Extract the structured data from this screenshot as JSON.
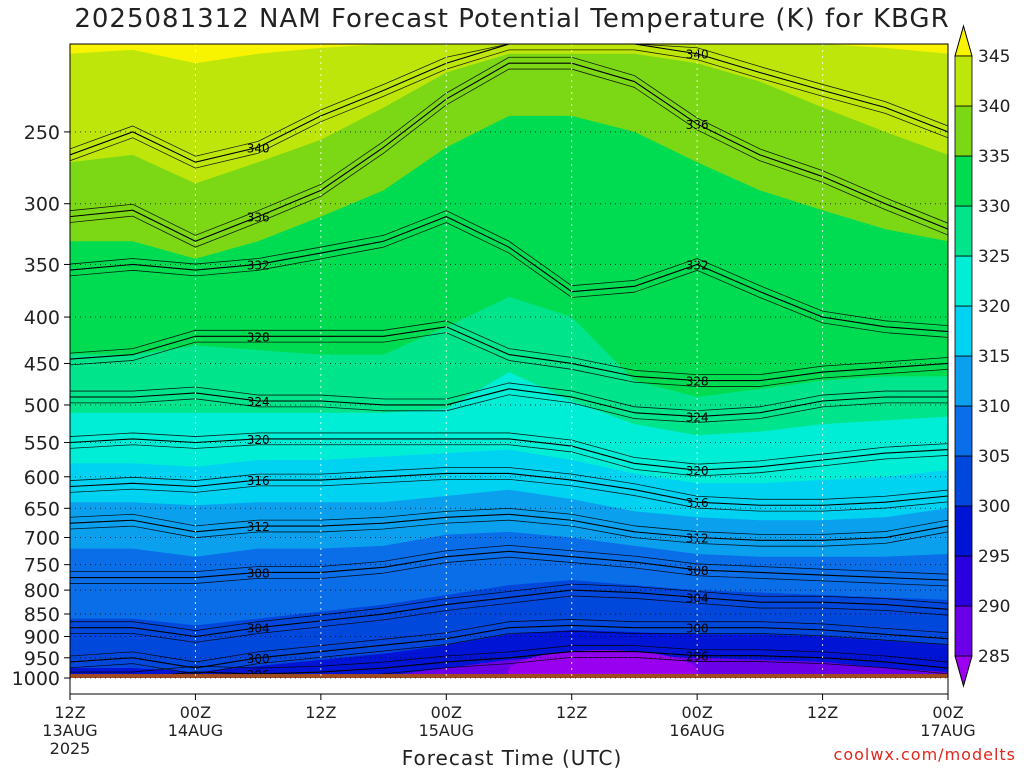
{
  "title": "2025081312 NAM Forecast Potential Temperature (K) for KBGR",
  "credit": "coolwx.com/modelts",
  "chart_data": {
    "type": "heatmap",
    "title": "2025081312 NAM Forecast Potential Temperature (K) for KBGR",
    "xlabel": "Forecast Time (UTC)",
    "ylabel": "",
    "y_scale": "log-pressure",
    "y_axis_inverted": true,
    "ylim": [
      1000,
      200
    ],
    "xlim": [
      0,
      84
    ],
    "grid": true,
    "y_ticks": [
      250,
      300,
      350,
      400,
      450,
      500,
      550,
      600,
      650,
      700,
      750,
      800,
      850,
      900,
      950,
      1000
    ],
    "x_ticks": [
      {
        "hour": 0,
        "label1": "12Z",
        "label2": "13AUG",
        "label3": "2025"
      },
      {
        "hour": 12,
        "label1": "00Z",
        "label2": "14AUG",
        "label3": ""
      },
      {
        "hour": 24,
        "label1": "12Z",
        "label2": "",
        "label3": ""
      },
      {
        "hour": 36,
        "label1": "00Z",
        "label2": "15AUG",
        "label3": ""
      },
      {
        "hour": 48,
        "label1": "12Z",
        "label2": "",
        "label3": ""
      },
      {
        "hour": 60,
        "label1": "00Z",
        "label2": "16AUG",
        "label3": ""
      },
      {
        "hour": 72,
        "label1": "12Z",
        "label2": "",
        "label3": ""
      },
      {
        "hour": 84,
        "label1": "00Z",
        "label2": "17AUG",
        "label3": ""
      }
    ],
    "colorbar": {
      "levels": [
        285,
        290,
        295,
        300,
        305,
        310,
        315,
        320,
        325,
        330,
        335,
        340,
        345
      ],
      "colors": [
        "#9d00f0",
        "#6b00e8",
        "#2a00e0",
        "#0014d6",
        "#0048dc",
        "#0a6ee8",
        "#0aa0ee",
        "#00d2f2",
        "#00eed6",
        "#00e48c",
        "#00dc52",
        "#7cd814",
        "#bfe60a",
        "#f8f400"
      ]
    },
    "ground_color": "#a04a22",
    "hours": [
      0,
      6,
      12,
      18,
      24,
      30,
      36,
      42,
      48,
      54,
      60,
      66,
      72,
      78,
      84
    ],
    "contours": [
      {
        "label": "296",
        "pressures": [
          1000,
          1000,
          985,
          990,
          985,
          975,
          960,
          950,
          935,
          935,
          945,
          945,
          950,
          960,
          975
        ]
      },
      {
        "label": "300",
        "pressures": [
          960,
          950,
          975,
          950,
          935,
          920,
          905,
          880,
          875,
          880,
          880,
          880,
          885,
          895,
          905
        ]
      },
      {
        "label": "304",
        "pressures": [
          880,
          880,
          900,
          880,
          865,
          850,
          830,
          815,
          800,
          805,
          815,
          825,
          825,
          830,
          840
        ]
      },
      {
        "label": "308",
        "pressures": [
          775,
          775,
          775,
          765,
          765,
          755,
          735,
          725,
          735,
          745,
          760,
          765,
          770,
          775,
          780
        ]
      },
      {
        "label": "312",
        "pressures": [
          675,
          670,
          690,
          680,
          680,
          675,
          665,
          660,
          670,
          690,
          700,
          705,
          705,
          700,
          680
        ]
      },
      {
        "label": "316",
        "pressures": [
          615,
          610,
          615,
          605,
          605,
          600,
          595,
          595,
          605,
          620,
          640,
          645,
          645,
          640,
          630
        ]
      },
      {
        "label": "320",
        "pressures": [
          550,
          545,
          550,
          545,
          545,
          545,
          545,
          545,
          555,
          580,
          590,
          585,
          575,
          565,
          560
        ]
      },
      {
        "label": "324",
        "pressures": [
          490,
          490,
          485,
          495,
          495,
          500,
          500,
          480,
          490,
          510,
          515,
          510,
          495,
          490,
          490
        ]
      },
      {
        "label": "328",
        "pressures": [
          445,
          440,
          420,
          420,
          420,
          420,
          410,
          440,
          450,
          465,
          470,
          470,
          460,
          455,
          450
        ]
      },
      {
        "label": "332",
        "pressures": [
          355,
          350,
          355,
          350,
          340,
          330,
          310,
          335,
          375,
          370,
          350,
          375,
          400,
          410,
          415
        ]
      },
      {
        "label": "336",
        "pressures": [
          310,
          305,
          330,
          310,
          290,
          260,
          230,
          210,
          210,
          220,
          245,
          265,
          280,
          300,
          320
        ]
      },
      {
        "label": "340",
        "pressures": [
          265,
          250,
          270,
          260,
          240,
          225,
          210,
          200,
          200,
          200,
          205,
          215,
          225,
          235,
          250
        ]
      }
    ],
    "shading_levels": [
      {
        "value": 295,
        "pressures": [
          1000,
          1000,
          1000,
          1000,
          1000,
          995,
          975,
          955,
          945,
          945,
          950,
          955,
          960,
          975,
          985
        ]
      },
      {
        "value": 300,
        "pressures": [
          975,
          975,
          985,
          970,
          955,
          940,
          920,
          895,
          885,
          890,
          895,
          895,
          900,
          910,
          920
        ]
      },
      {
        "value": 305,
        "pressures": [
          860,
          860,
          875,
          860,
          845,
          830,
          810,
          790,
          780,
          790,
          800,
          805,
          810,
          815,
          820
        ]
      },
      {
        "value": 310,
        "pressures": [
          720,
          720,
          735,
          720,
          720,
          715,
          695,
          690,
          700,
          715,
          730,
          735,
          735,
          735,
          730
        ]
      },
      {
        "value": 315,
        "pressures": [
          640,
          640,
          645,
          640,
          640,
          640,
          630,
          620,
          635,
          655,
          665,
          670,
          670,
          665,
          650
        ]
      },
      {
        "value": 320,
        "pressures": [
          580,
          580,
          585,
          575,
          575,
          570,
          565,
          560,
          575,
          595,
          610,
          610,
          605,
          600,
          590
        ]
      },
      {
        "value": 325,
        "pressures": [
          510,
          510,
          510,
          510,
          510,
          510,
          505,
          460,
          495,
          525,
          540,
          535,
          525,
          520,
          515
        ]
      },
      {
        "value": 330,
        "pressures": [
          440,
          440,
          430,
          435,
          440,
          440,
          410,
          380,
          400,
          470,
          490,
          480,
          470,
          465,
          465
        ]
      },
      {
        "value": 335,
        "pressures": [
          330,
          330,
          345,
          330,
          310,
          290,
          260,
          240,
          240,
          250,
          270,
          290,
          305,
          320,
          330
        ]
      },
      {
        "value": 340,
        "pressures": [
          270,
          265,
          285,
          270,
          255,
          235,
          215,
          205,
          205,
          205,
          210,
          220,
          235,
          250,
          265
        ]
      },
      {
        "value": 345,
        "pressures": [
          205,
          203,
          210,
          205,
          202,
          200,
          200,
          200,
          200,
          200,
          200,
          200,
          200,
          202,
          205
        ]
      }
    ]
  }
}
